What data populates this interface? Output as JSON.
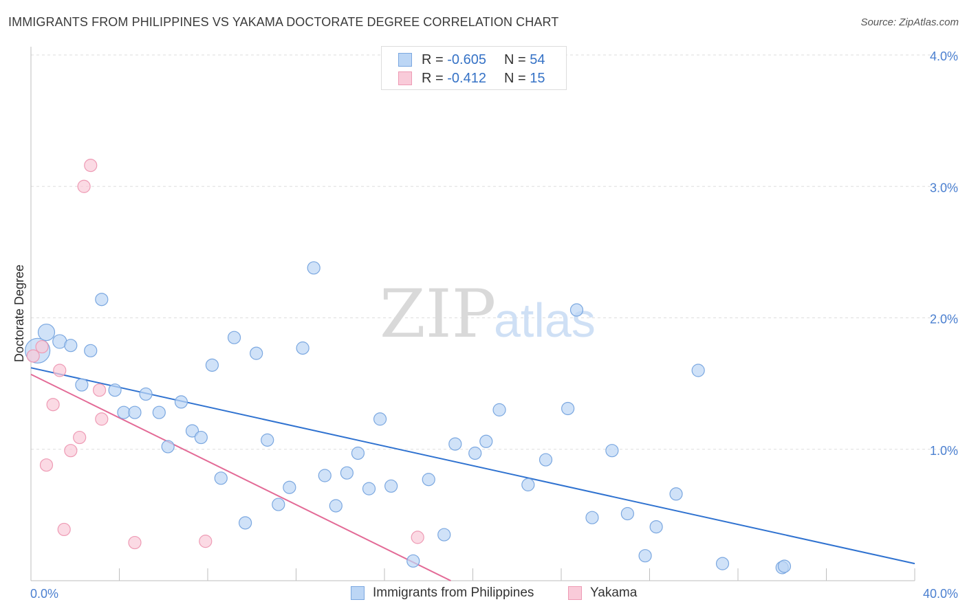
{
  "title": "IMMIGRANTS FROM PHILIPPINES VS YAKAMA DOCTORATE DEGREE CORRELATION CHART",
  "source": "Source: ZipAtlas.com",
  "watermark": {
    "zip": "ZIP",
    "atlas": "atlas"
  },
  "legend": {
    "rows": [
      {
        "r_label": "R =",
        "r_value": "-0.605",
        "n_label": "N =",
        "n_value": "54"
      },
      {
        "r_label": "R =",
        "r_value": "-0.412",
        "n_label": "N =",
        "n_value": "15"
      }
    ]
  },
  "bottom_legend": [
    "Immigrants from Philippines",
    "Yakama"
  ],
  "chart_data": {
    "type": "scatter",
    "ylabel": "Doctorate Degree",
    "xlabel": "",
    "xlim": [
      0,
      40
    ],
    "ylim": [
      0,
      4.0
    ],
    "x_tick_labels": [
      "0.0%",
      "40.0%"
    ],
    "y_tick_labels": [
      "1.0%",
      "2.0%",
      "3.0%",
      "4.0%"
    ],
    "y_ticks": [
      1.0,
      2.0,
      3.0,
      4.0
    ],
    "grid": true,
    "colors": {
      "philippines_fill": "#bcd6f5",
      "philippines_stroke": "#7aa7e0",
      "philippines_line": "#2f72d0",
      "yakama_fill": "#f9cbd9",
      "yakama_stroke": "#ee9ab4",
      "yakama_line": "#e36a96"
    },
    "series": [
      {
        "name": "Immigrants from Philippines",
        "points": [
          [
            0.3,
            1.75,
            18
          ],
          [
            0.7,
            1.89,
            12
          ],
          [
            1.3,
            1.82,
            10
          ],
          [
            1.8,
            1.79,
            9
          ],
          [
            2.3,
            1.49,
            9
          ],
          [
            2.7,
            1.75,
            9
          ],
          [
            3.2,
            2.14,
            9
          ],
          [
            3.8,
            1.45,
            9
          ],
          [
            4.2,
            1.28,
            9
          ],
          [
            4.7,
            1.28,
            9
          ],
          [
            5.2,
            1.42,
            9
          ],
          [
            5.8,
            1.28,
            9
          ],
          [
            6.2,
            1.02,
            9
          ],
          [
            6.8,
            1.36,
            9
          ],
          [
            7.3,
            1.14,
            9
          ],
          [
            7.7,
            1.09,
            9
          ],
          [
            8.2,
            1.64,
            9
          ],
          [
            8.6,
            0.78,
            9
          ],
          [
            9.2,
            1.85,
            9
          ],
          [
            9.7,
            0.44,
            9
          ],
          [
            10.2,
            1.73,
            9
          ],
          [
            10.7,
            1.07,
            9
          ],
          [
            11.2,
            0.58,
            9
          ],
          [
            11.7,
            0.71,
            9
          ],
          [
            12.3,
            1.77,
            9
          ],
          [
            12.8,
            2.38,
            9
          ],
          [
            13.3,
            0.8,
            9
          ],
          [
            13.8,
            0.57,
            9
          ],
          [
            14.3,
            0.82,
            9
          ],
          [
            14.8,
            0.97,
            9
          ],
          [
            15.3,
            0.7,
            9
          ],
          [
            15.8,
            1.23,
            9
          ],
          [
            16.3,
            0.72,
            9
          ],
          [
            17.3,
            0.15,
            9
          ],
          [
            18.0,
            0.77,
            9
          ],
          [
            18.7,
            0.35,
            9
          ],
          [
            19.2,
            1.04,
            9
          ],
          [
            20.1,
            0.97,
            9
          ],
          [
            20.6,
            1.06,
            9
          ],
          [
            21.2,
            1.3,
            9
          ],
          [
            22.5,
            0.73,
            9
          ],
          [
            23.3,
            0.92,
            9
          ],
          [
            24.3,
            1.31,
            9
          ],
          [
            24.7,
            2.06,
            9
          ],
          [
            25.4,
            0.48,
            9
          ],
          [
            26.3,
            0.99,
            9
          ],
          [
            27.0,
            0.51,
            9
          ],
          [
            27.8,
            0.19,
            9
          ],
          [
            28.3,
            0.41,
            9
          ],
          [
            29.2,
            0.66,
            9
          ],
          [
            30.2,
            1.6,
            9
          ],
          [
            31.3,
            0.13,
            9
          ],
          [
            34.0,
            0.1,
            9
          ],
          [
            34.1,
            0.11,
            9
          ]
        ],
        "trend": {
          "x": [
            0,
            40
          ],
          "y": [
            1.62,
            0.13
          ]
        }
      },
      {
        "name": "Yakama",
        "points": [
          [
            0.1,
            1.71,
            9
          ],
          [
            0.5,
            1.78,
            9
          ],
          [
            1.3,
            1.6,
            9
          ],
          [
            2.4,
            3.0,
            9
          ],
          [
            2.7,
            3.16,
            9
          ],
          [
            1.0,
            1.34,
            9
          ],
          [
            3.1,
            1.45,
            9
          ],
          [
            3.2,
            1.23,
            9
          ],
          [
            2.2,
            1.09,
            9
          ],
          [
            1.8,
            0.99,
            9
          ],
          [
            0.7,
            0.88,
            9
          ],
          [
            1.5,
            0.39,
            9
          ],
          [
            4.7,
            0.29,
            9
          ],
          [
            7.9,
            0.3,
            9
          ],
          [
            17.5,
            0.33,
            9
          ]
        ],
        "trend": {
          "x": [
            0,
            19.0
          ],
          "y": [
            1.57,
            0.0
          ]
        }
      }
    ]
  }
}
